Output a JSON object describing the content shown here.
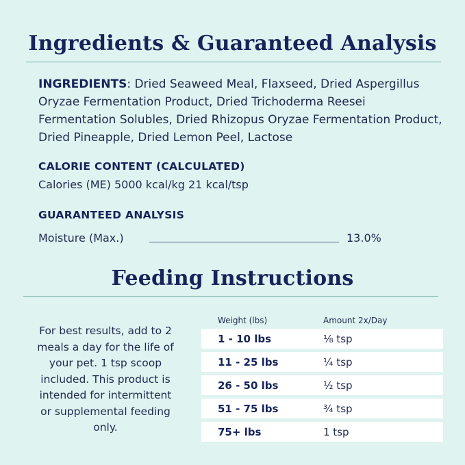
{
  "headings": {
    "analysis_title": "Ingredients & Guaranteed Analysis",
    "feeding_title": "Feeding Instructions"
  },
  "ingredients": {
    "label": "INGREDIENTS",
    "text": ": Dried Seaweed Meal, Flaxseed, Dried Aspergillus Oryzae Fermentation Product, Dried Trichoderma Reesei Fermentation Solubles, Dried Rhizopus Oryzae Fermentation Product, Dried Pineapple, Dried Lemon Peel, Lactose"
  },
  "calorie": {
    "label": "CALORIE CONTENT (CALCULATED)",
    "text": "Calories (ME) 5000 kcal/kg  21 kcal/tsp"
  },
  "analysis": {
    "label": "GUARANTEED ANALYSIS",
    "moisture_label": "Moisture (Max.)",
    "moisture_value": "13.0%"
  },
  "feeding": {
    "note": "For best results, add to 2 meals a day for the life of your pet. 1 tsp scoop included. This product is intended for intermittent or supplemental feeding only.",
    "col_weight": "Weight (lbs)",
    "col_amount": "Amount 2x/Day",
    "rows": [
      {
        "weight": "1 - 10 lbs",
        "amount": "⅛ tsp"
      },
      {
        "weight": "11 - 25 lbs",
        "amount": "¼ tsp"
      },
      {
        "weight": "26 - 50 lbs",
        "amount": "½ tsp"
      },
      {
        "weight": "51 - 75 lbs",
        "amount": "¾ tsp"
      },
      {
        "weight": "75+ lbs",
        "amount": "1 tsp"
      }
    ]
  },
  "colors": {
    "background": "#dff3f1",
    "navy": "#16245a",
    "rule": "#6fa9a5"
  }
}
